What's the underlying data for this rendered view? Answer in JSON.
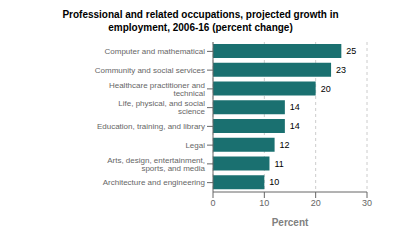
{
  "chart_data": {
    "type": "bar",
    "orientation": "horizontal",
    "title": "Professional and related occupations, projected growth in\nemployment, 2006-16 (percent change)",
    "categories": [
      "Computer and mathematical",
      "Community and social services",
      "Healthcare practitioner and technical",
      "Life, physical, and social science",
      "Education, training, and library",
      "Legal",
      "Arts, design, entertainment, sports, and media",
      "Architecture and engineering"
    ],
    "values": [
      25,
      23,
      20,
      14,
      14,
      12,
      11,
      10
    ],
    "color": "#1a7070",
    "xlabel": "Percent",
    "xlim": [
      0,
      30
    ],
    "xticks": [
      0,
      10,
      20,
      30
    ],
    "grid": true,
    "data_labels": true
  }
}
